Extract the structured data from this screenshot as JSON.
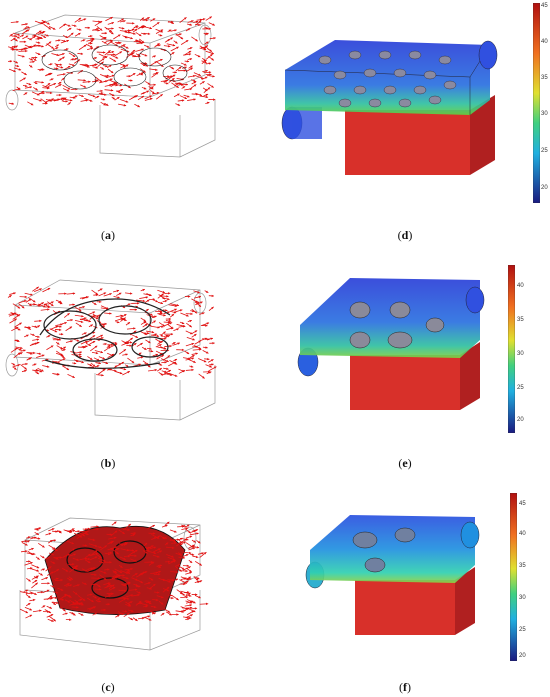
{
  "captions": {
    "a": "a",
    "b": "b",
    "c": "c",
    "d": "d",
    "e": "e",
    "f": "f"
  },
  "colorbars": {
    "d": {
      "ticks": [
        "45",
        "40",
        "35",
        "30",
        "25",
        "20"
      ]
    },
    "e": {
      "ticks": [
        "40",
        "35",
        "30",
        "25",
        "20"
      ]
    },
    "f": {
      "ticks": [
        "45",
        "40",
        "35",
        "30",
        "25",
        "20"
      ]
    }
  },
  "colors": {
    "arrow": "#e01010",
    "lattice": "#222222",
    "box_blue": "#2a3fd8",
    "box_red": "#d8302a",
    "cyan": "#20c0c0",
    "green": "#40c050"
  }
}
